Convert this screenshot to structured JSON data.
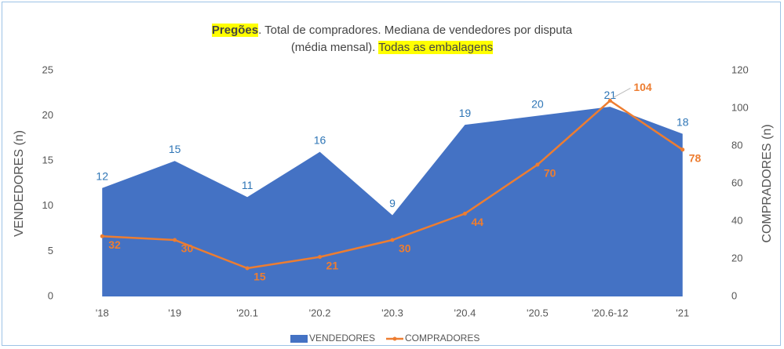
{
  "chart_data": {
    "type": "area_line",
    "title": [
      [
        {
          "text": "Pregões",
          "highlight": true,
          "bold": true
        },
        {
          "text": ". Total de compradores. Mediana de vendedores por disputa"
        }
      ],
      [
        {
          "text": "(média mensal). "
        },
        {
          "text": "Todas as embalagens",
          "highlight": true
        }
      ]
    ],
    "y_label": "VENDEDORES (n)",
    "y2_label": "COMPRADORES (n)",
    "categories": [
      "'18",
      "'19",
      "'20.1",
      "'20.2",
      "'20.3",
      "'20.4",
      "'20.5",
      "'20.6-12",
      "'21"
    ],
    "series": [
      {
        "name": "VENDEDORES",
        "color": "#4472c4",
        "label_color": "#2e75b6",
        "values": [
          12,
          15,
          11,
          16,
          9,
          19,
          20,
          21,
          18
        ]
      },
      {
        "name": "COMPRADORES",
        "color": "#ed7d31",
        "axis": "y2",
        "values": [
          32,
          30,
          15,
          21,
          30,
          44,
          70,
          104,
          78
        ]
      }
    ],
    "ylim": [
      0,
      25
    ],
    "yticks": [
      0,
      5,
      10,
      15,
      20,
      25
    ],
    "y2lim": [
      0,
      120
    ],
    "y2ticks": [
      0,
      20,
      40,
      60,
      80,
      100,
      120
    ],
    "legend": "bottom"
  }
}
